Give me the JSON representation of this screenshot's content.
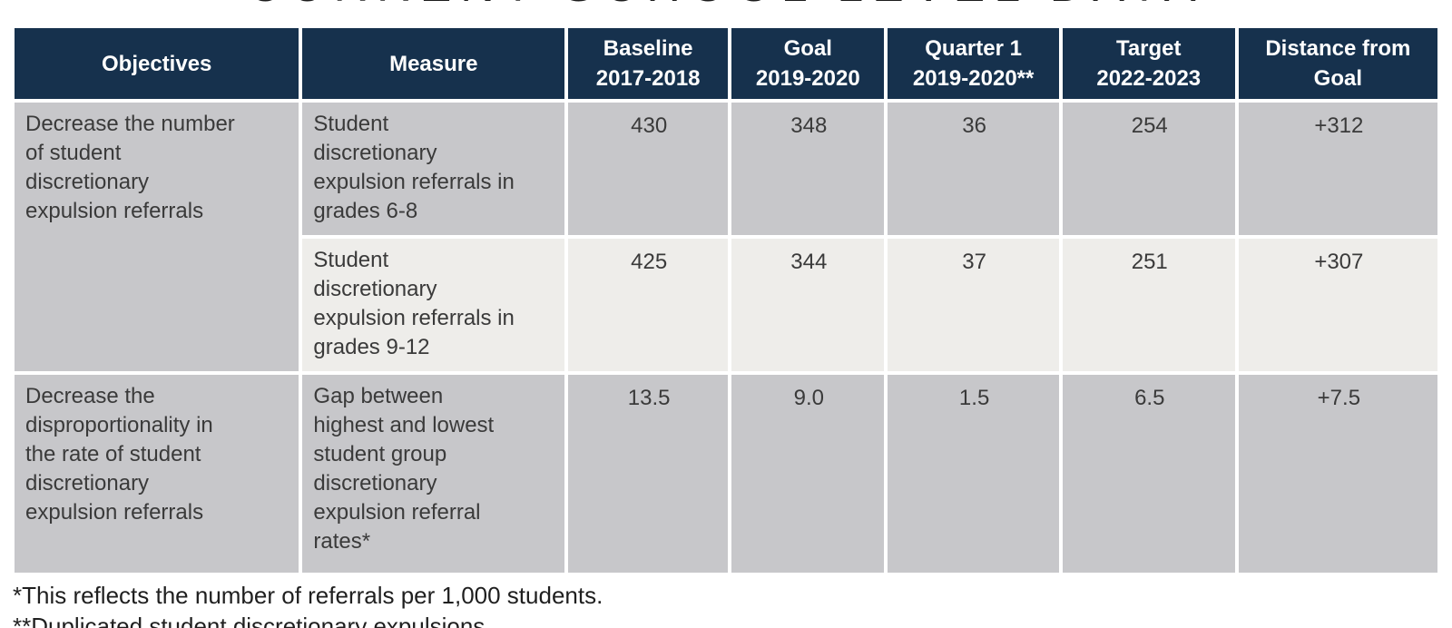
{
  "title": "CURRENT SCHOOL LEVEL DATA",
  "colors": {
    "header_bg": "#16314d",
    "header_text": "#ffffff",
    "row_gray": "#c7c7ca",
    "row_light": "#eeedea",
    "body_text": "#3a3a3a",
    "page_bg": "#ffffff"
  },
  "table": {
    "header": {
      "objectives": "Objectives",
      "measure": "Measure",
      "baseline": "Baseline\n2017-2018",
      "goal": "Goal\n2019-2020",
      "quarter1": "Quarter 1\n2019-2020**",
      "target": "Target\n2022-2023",
      "distance": "Distance from\nGoal"
    },
    "rows": [
      {
        "objective": "Decrease the number\nof student\ndiscretionary\nexpulsion referrals",
        "measure": "Student\ndiscretionary\nexpulsion referrals in\ngrades 6-8",
        "baseline": "430",
        "goal": "348",
        "quarter1": "36",
        "target": "254",
        "distance": "+312"
      },
      {
        "measure": "Student\ndiscretionary\nexpulsion referrals in\ngrades 9-12",
        "baseline": "425",
        "goal": "344",
        "quarter1": "37",
        "target": "251",
        "distance": "+307"
      },
      {
        "objective": "Decrease the\ndisproportionality in\nthe rate of student\ndiscretionary\nexpulsion referrals",
        "measure": "Gap between\nhighest and lowest\nstudent group\ndiscretionary\nexpulsion referral\nrates*",
        "baseline": "13.5",
        "goal": "9.0",
        "quarter1": "1.5",
        "target": "6.5",
        "distance": "+7.5"
      }
    ]
  },
  "footnotes": [
    "*This reflects the number of referrals per 1,000 students.",
    "**Duplicated student discretionary expulsions."
  ]
}
